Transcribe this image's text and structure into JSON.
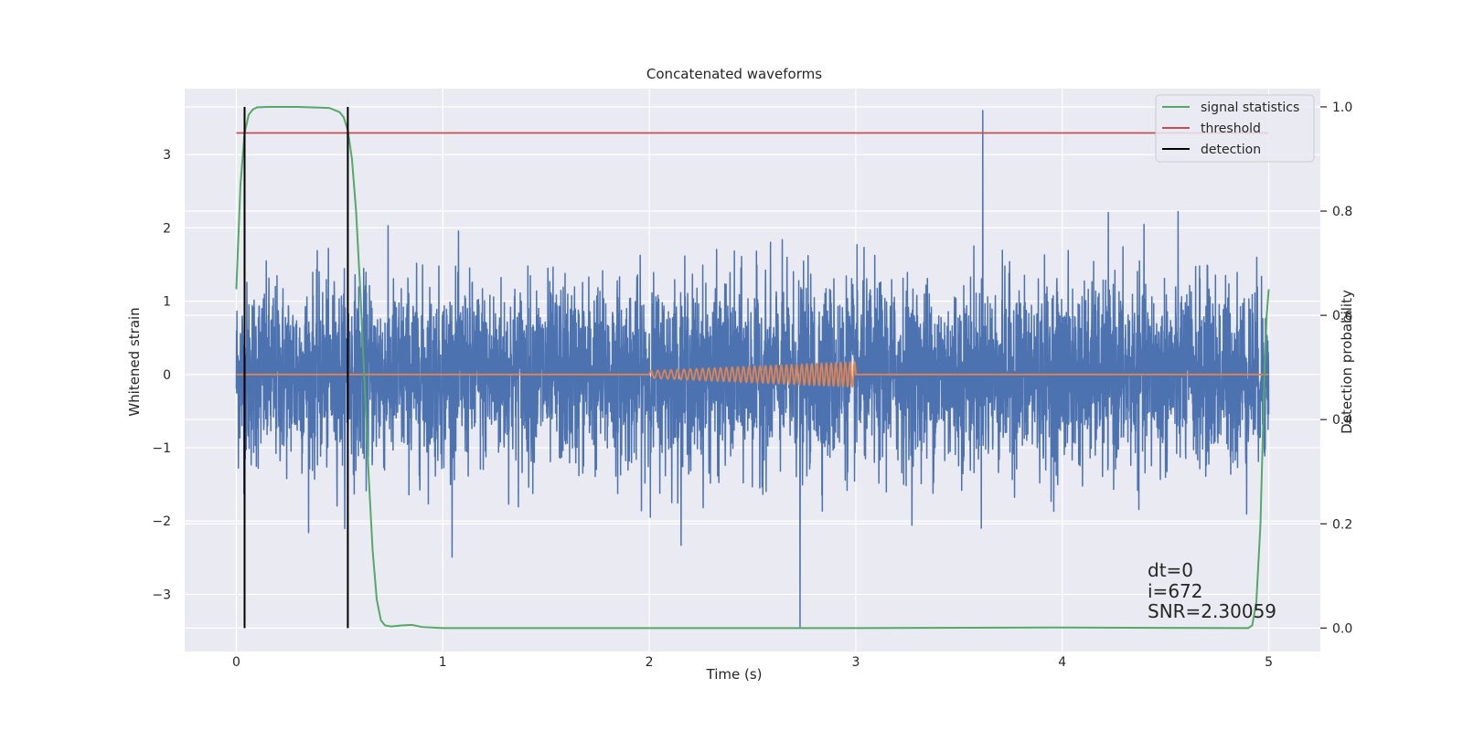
{
  "chart_data": {
    "type": "line",
    "title": "Concatenated waveforms",
    "xlabel": "Time (s)",
    "ylabel": "Whitened strain",
    "y2label": "Detection probability",
    "xlim": [
      -0.25,
      5.25
    ],
    "ylim": [
      -3.78,
      3.9
    ],
    "y2lim": [
      -0.045,
      1.035
    ],
    "xticks": [
      0,
      1,
      2,
      3,
      4,
      5
    ],
    "xtick_labels": [
      "0",
      "1",
      "2",
      "3",
      "4",
      "5"
    ],
    "yticks": [
      -3,
      -2,
      -1,
      0,
      1,
      2,
      3
    ],
    "ytick_labels": [
      "−3",
      "−2",
      "−1",
      "0",
      "1",
      "2",
      "3"
    ],
    "y2ticks": [
      0.0,
      0.2,
      0.4,
      0.6,
      0.8,
      1.0
    ],
    "y2tick_labels": [
      "0.0",
      "0.2",
      "0.4",
      "0.6",
      "0.8",
      "1.0"
    ],
    "grid": true,
    "legend_position": "top-right",
    "colors": {
      "noise": "#4c72b0",
      "injection": "#dd8452",
      "signal_statistics": "#55a868",
      "threshold": "#c44e52",
      "detection": "#000000",
      "axes_face": "#eaeaf2",
      "grid": "#ffffff"
    },
    "series": [
      {
        "name": "signal statistics",
        "axis": "right",
        "x": [
          0.0,
          0.02,
          0.04,
          0.06,
          0.08,
          0.1,
          0.15,
          0.3,
          0.45,
          0.5,
          0.52,
          0.54,
          0.56,
          0.58,
          0.6,
          0.62,
          0.64,
          0.66,
          0.68,
          0.7,
          0.72,
          0.75,
          0.8,
          0.85,
          0.9,
          1.0,
          2.0,
          3.0,
          4.0,
          4.9,
          4.92,
          4.94,
          4.96,
          4.97,
          4.98,
          4.99,
          5.0
        ],
        "y": [
          0.65,
          0.85,
          0.95,
          0.985,
          0.995,
          0.999,
          1.0,
          1.0,
          0.998,
          0.99,
          0.98,
          0.955,
          0.9,
          0.8,
          0.65,
          0.48,
          0.3,
          0.15,
          0.055,
          0.015,
          0.005,
          0.003,
          0.005,
          0.006,
          0.002,
          0.0,
          0.0,
          0.0,
          0.001,
          0.0,
          0.005,
          0.05,
          0.2,
          0.35,
          0.5,
          0.6,
          0.65
        ]
      },
      {
        "name": "threshold",
        "axis": "right",
        "x": [
          0,
          5
        ],
        "y": [
          0.95,
          0.95
        ]
      },
      {
        "name": "detection",
        "axis": "right",
        "x": [
          0.04,
          0.54
        ],
        "y": [
          [
            0.0,
            1.0
          ],
          [
            0.0,
            1.0
          ]
        ]
      },
      {
        "axis": "left",
        "x": [
          0,
          2,
          3,
          5
        ],
        "y": [
          0,
          0,
          0,
          0
        ],
        "chirp": {
          "start": 2.0,
          "end": 3.0,
          "amplitude_start": 0.05,
          "amplitude_end": 0.17,
          "freq_start": 30,
          "freq_end": 45
        }
      }
    ],
    "noise_band": {
      "x_range": [
        0.0,
        5.0
      ],
      "core_range": [
        -0.65,
        0.8
      ],
      "typical_extremes": [
        -2.5,
        2.6
      ],
      "max": 3.6,
      "min": -3.45
    },
    "annotations": [
      "dt=0",
      "i=672",
      "SNR=2.30059"
    ]
  }
}
